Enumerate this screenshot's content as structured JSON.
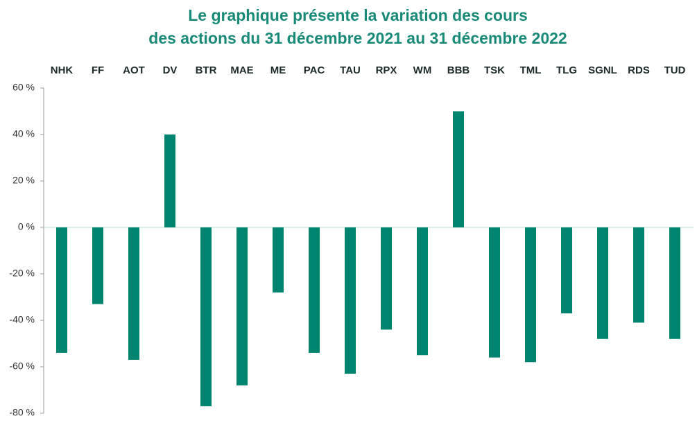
{
  "chart_data": {
    "type": "bar",
    "title": [
      "Le graphique présente la variation des cours",
      "des actions du 31 décembre 2021 au 31 décembre 2022"
    ],
    "categories": [
      "NHK",
      "FF",
      "AOT",
      "DV",
      "BTR",
      "MAE",
      "ME",
      "PAC",
      "TAU",
      "RPX",
      "WM",
      "BBB",
      "TSK",
      "TML",
      "TLG",
      "SGNL",
      "RDS",
      "TUD"
    ],
    "values": [
      -54,
      -33,
      -57,
      40,
      -77,
      -68,
      -28,
      -54,
      -63,
      -44,
      -55,
      50,
      -56,
      -58,
      -37,
      -48,
      -41,
      -48
    ],
    "color": "#00836f",
    "ylim": [
      -80,
      60
    ],
    "yticks": [
      {
        "value": -80,
        "label": "-80 %"
      },
      {
        "value": -60,
        "label": "-60 %"
      },
      {
        "value": -40,
        "label": "-40 %"
      },
      {
        "value": -20,
        "label": "-20 %"
      },
      {
        "value": 0,
        "label": "0 %"
      },
      {
        "value": 20,
        "label": "20 %"
      },
      {
        "value": 40,
        "label": "40 %"
      },
      {
        "value": 60,
        "label": "60 %"
      }
    ],
    "grid": false
  }
}
